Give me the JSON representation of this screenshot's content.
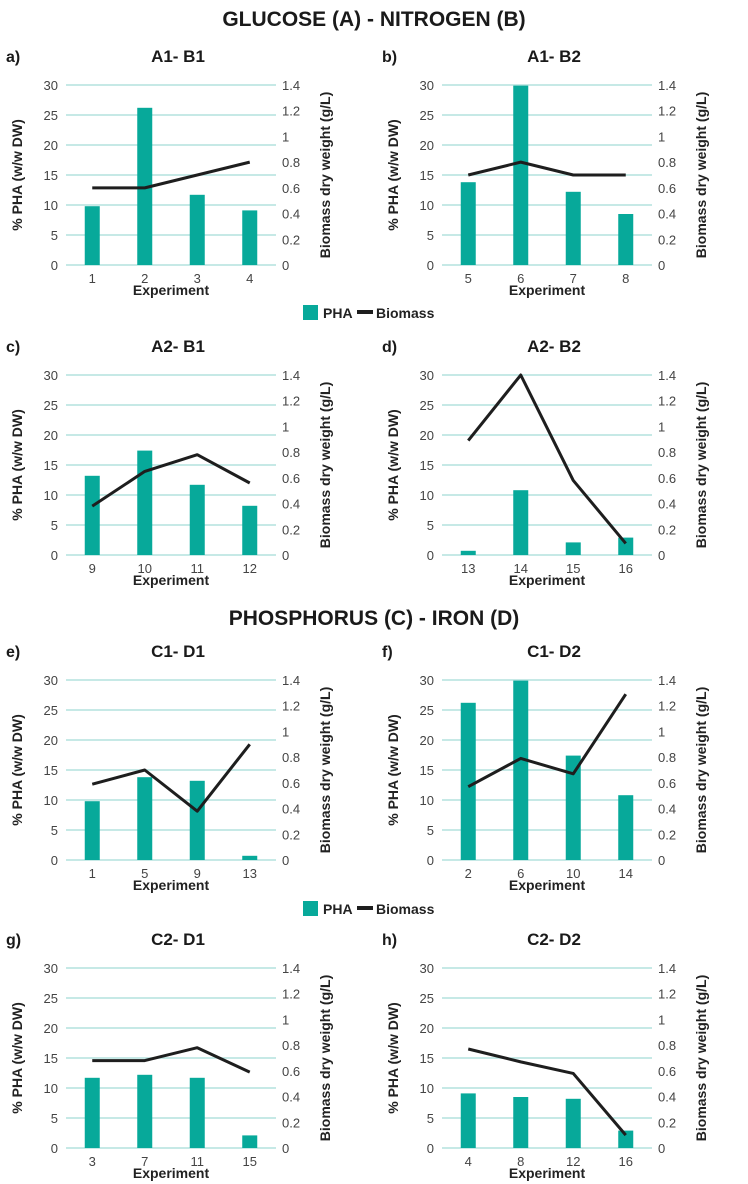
{
  "section_titles": [
    "GLUCOSE (A) - NITROGEN (B)",
    "PHOSPHORUS (C) - IRON (D)"
  ],
  "legend": {
    "pha": "PHA",
    "biomass": "Biomass"
  },
  "colors": {
    "pha": "#07a99a",
    "biomass": "#1e1e1e",
    "grid": "#b4e2de"
  },
  "chart_data": [
    {
      "type": "bar+line",
      "label": "a)",
      "title": "A1- B1",
      "xlabel": "Experiment",
      "ylabel": "% PHA (w/w DW)",
      "y2label": "Biomass dry weight (g/L)",
      "ylim": [
        0,
        30
      ],
      "y2lim": [
        0,
        1.4
      ],
      "yticks": [
        "0",
        "5",
        "10",
        "15",
        "20",
        "25",
        "30"
      ],
      "y2ticks": [
        "0",
        "0.2",
        "0.4",
        "0.6",
        "0.8",
        "1",
        "1.2",
        "1.4"
      ],
      "categories": [
        "1",
        "2",
        "3",
        "4"
      ],
      "pha": [
        9.8,
        26.2,
        11.7,
        9.1
      ],
      "biomass": [
        0.6,
        0.6,
        0.7,
        0.8
      ]
    },
    {
      "type": "bar+line",
      "label": "b)",
      "title": "A1- B2",
      "xlabel": "Experiment",
      "ylabel": "% PHA (w/w DW)",
      "y2label": "Biomass dry weight (g/L)",
      "ylim": [
        0,
        30
      ],
      "y2lim": [
        0,
        1.4
      ],
      "yticks": [
        "0",
        "5",
        "10",
        "15",
        "20",
        "25",
        "30"
      ],
      "y2ticks": [
        "0",
        "0.2",
        "0.4",
        "0.6",
        "0.8",
        "1",
        "1.2",
        "1.4"
      ],
      "categories": [
        "5",
        "6",
        "7",
        "8"
      ],
      "pha": [
        13.8,
        29.9,
        12.2,
        8.5
      ],
      "biomass": [
        0.7,
        0.8,
        0.7,
        0.7
      ]
    },
    {
      "type": "bar+line",
      "label": "c)",
      "title": "A2- B1",
      "xlabel": "Experiment",
      "ylabel": "% PHA (w/w DW)",
      "y2label": "Biomass dry weight (g/L)",
      "ylim": [
        0,
        30
      ],
      "y2lim": [
        0,
        1.4
      ],
      "yticks": [
        "0",
        "5",
        "10",
        "15",
        "20",
        "25",
        "30"
      ],
      "y2ticks": [
        "0",
        "0.2",
        "0.4",
        "0.6",
        "0.8",
        "1",
        "1.2",
        "1.4"
      ],
      "categories": [
        "9",
        "10",
        "11",
        "12"
      ],
      "pha": [
        13.2,
        17.4,
        11.7,
        8.2
      ],
      "biomass": [
        0.38,
        0.65,
        0.78,
        0.56
      ]
    },
    {
      "type": "bar+line",
      "label": "d)",
      "title": "A2- B2",
      "xlabel": "Experiment",
      "ylabel": "% PHA (w/w DW)",
      "y2label": "Biomass dry weight (g/L)",
      "ylim": [
        0,
        30
      ],
      "y2lim": [
        0,
        1.4
      ],
      "yticks": [
        "0",
        "5",
        "10",
        "15",
        "20",
        "25",
        "30"
      ],
      "y2ticks": [
        "0",
        "0.2",
        "0.4",
        "0.6",
        "0.8",
        "1",
        "1.2",
        "1.4"
      ],
      "categories": [
        "13",
        "14",
        "15",
        "16"
      ],
      "pha": [
        0.7,
        10.8,
        2.1,
        2.9
      ],
      "biomass": [
        0.89,
        1.4,
        0.58,
        0.09
      ]
    },
    {
      "type": "bar+line",
      "label": "e)",
      "title": "C1- D1",
      "xlabel": "Experiment",
      "ylabel": "% PHA (w/w DW)",
      "y2label": "Biomass dry weight (g/L)",
      "ylim": [
        0,
        30
      ],
      "y2lim": [
        0,
        1.4
      ],
      "yticks": [
        "0",
        "5",
        "10",
        "15",
        "20",
        "25",
        "30"
      ],
      "y2ticks": [
        "0",
        "0.2",
        "0.4",
        "0.6",
        "0.8",
        "1",
        "1.2",
        "1.4"
      ],
      "categories": [
        "1",
        "5",
        "9",
        "13"
      ],
      "pha": [
        9.8,
        13.8,
        13.2,
        0.7
      ],
      "biomass": [
        0.59,
        0.7,
        0.38,
        0.9
      ]
    },
    {
      "type": "bar+line",
      "label": "f)",
      "title": "C1- D2",
      "xlabel": "Experiment",
      "ylabel": "% PHA (w/w DW)",
      "y2label": "Biomass dry weight (g/L)",
      "ylim": [
        0,
        30
      ],
      "y2lim": [
        0,
        1.4
      ],
      "yticks": [
        "0",
        "5",
        "10",
        "15",
        "20",
        "25",
        "30"
      ],
      "y2ticks": [
        "0",
        "0.2",
        "0.4",
        "0.6",
        "0.8",
        "1",
        "1.2",
        "1.4"
      ],
      "categories": [
        "2",
        "6",
        "10",
        "14"
      ],
      "pha": [
        26.2,
        29.9,
        17.4,
        10.8
      ],
      "biomass": [
        0.57,
        0.79,
        0.67,
        1.29
      ]
    },
    {
      "type": "bar+line",
      "label": "g)",
      "title": "C2- D1",
      "xlabel": "Experiment",
      "ylabel": "% PHA (w/w DW)",
      "y2label": "Biomass dry weight (g/L)",
      "ylim": [
        0,
        30
      ],
      "y2lim": [
        0,
        1.4
      ],
      "yticks": [
        "0",
        "5",
        "10",
        "15",
        "20",
        "25",
        "30"
      ],
      "y2ticks": [
        "0",
        "0.2",
        "0.4",
        "0.6",
        "0.8",
        "1",
        "1.2",
        "1.4"
      ],
      "categories": [
        "3",
        "7",
        "11",
        "15"
      ],
      "pha": [
        11.7,
        12.2,
        11.7,
        2.1
      ],
      "biomass": [
        0.68,
        0.68,
        0.78,
        0.59
      ]
    },
    {
      "type": "bar+line",
      "label": "h)",
      "title": "C2- D2",
      "xlabel": "Experiment",
      "ylabel": "% PHA (w/w DW)",
      "y2label": "Biomass dry weight (g/L)",
      "ylim": [
        0,
        30
      ],
      "y2lim": [
        0,
        1.4
      ],
      "yticks": [
        "0",
        "5",
        "10",
        "15",
        "20",
        "25",
        "30"
      ],
      "y2ticks": [
        "0",
        "0.2",
        "0.4",
        "0.6",
        "0.8",
        "1",
        "1.2",
        "1.4"
      ],
      "categories": [
        "4",
        "8",
        "12",
        "16"
      ],
      "pha": [
        9.1,
        8.5,
        8.2,
        2.9
      ],
      "biomass": [
        0.77,
        0.67,
        0.58,
        0.1
      ]
    }
  ]
}
